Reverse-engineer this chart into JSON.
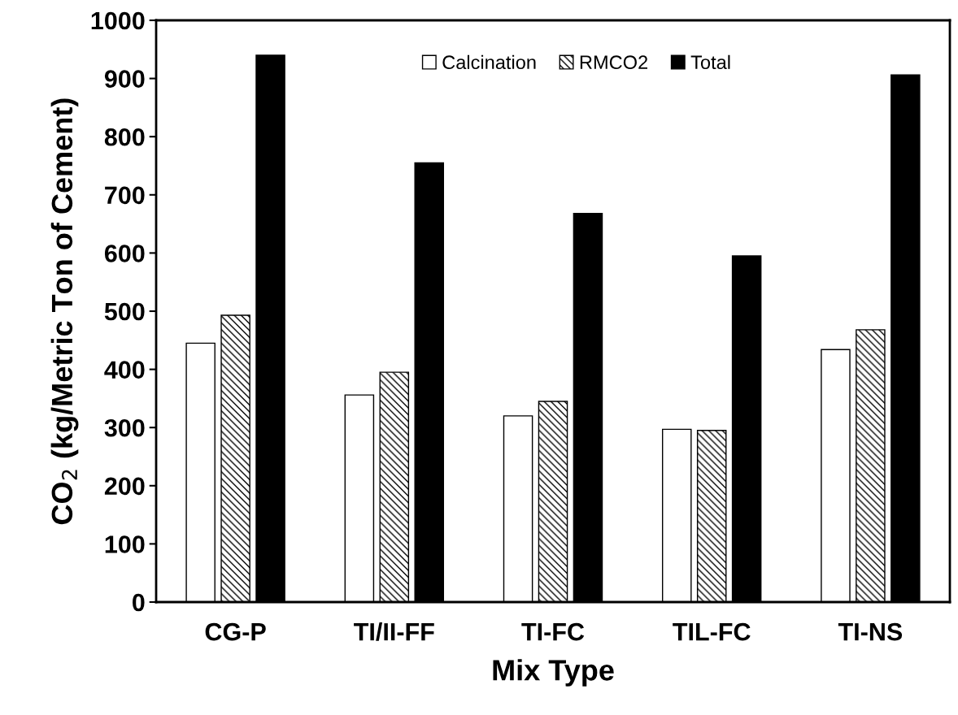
{
  "chart_data": {
    "type": "bar",
    "xlabel": "Mix Type",
    "ylabel": "CO$_{2}$ (kg/Metric Ton of Cement)",
    "categories": [
      "CG-P",
      "TI/II-FF",
      "TI-FC",
      "TIL-FC",
      "TI-NS"
    ],
    "series": [
      {
        "name": "Calcination",
        "color": "#ffffff",
        "values": [
          445,
          356,
          320,
          297,
          434
        ]
      },
      {
        "name": "RMCO2",
        "color": "#000000",
        "values": [
          493,
          395,
          345,
          295,
          468
        ]
      },
      {
        "name": "Total",
        "color": "#000000",
        "values": [
          940,
          755,
          668,
          595,
          906
        ]
      }
    ],
    "ylim": [
      0,
      1000
    ],
    "yticks": [
      0,
      100,
      200,
      300,
      400,
      500,
      600,
      700,
      800,
      900,
      1000
    ],
    "grid": false,
    "legend": "top"
  }
}
